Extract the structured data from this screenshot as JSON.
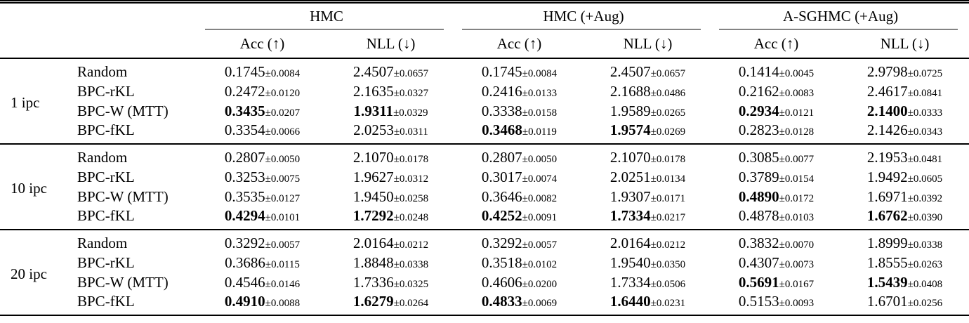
{
  "table": {
    "plus_minus": "±",
    "col_groups": [
      {
        "label": "HMC"
      },
      {
        "label": "HMC (+Aug)"
      },
      {
        "label": "A-SGHMC (+Aug)"
      }
    ],
    "sub_headers": [
      "Acc (↑)",
      "NLL (↓)"
    ],
    "row_groups": [
      {
        "label": "1 ipc",
        "rows": [
          {
            "method": "Random",
            "cells": [
              {
                "mean": "0.1745",
                "std": "0.0084",
                "bold": false
              },
              {
                "mean": "2.4507",
                "std": "0.0657",
                "bold": false
              },
              {
                "mean": "0.1745",
                "std": "0.0084",
                "bold": false
              },
              {
                "mean": "2.4507",
                "std": "0.0657",
                "bold": false
              },
              {
                "mean": "0.1414",
                "std": "0.0045",
                "bold": false
              },
              {
                "mean": "2.9798",
                "std": "0.0725",
                "bold": false
              }
            ]
          },
          {
            "method": "BPC-rKL",
            "cells": [
              {
                "mean": "0.2472",
                "std": "0.0120",
                "bold": false
              },
              {
                "mean": "2.1635",
                "std": "0.0327",
                "bold": false
              },
              {
                "mean": "0.2416",
                "std": "0.0133",
                "bold": false
              },
              {
                "mean": "2.1688",
                "std": "0.0486",
                "bold": false
              },
              {
                "mean": "0.2162",
                "std": "0.0083",
                "bold": false
              },
              {
                "mean": "2.4617",
                "std": "0.0841",
                "bold": false
              }
            ]
          },
          {
            "method": "BPC-W (MTT)",
            "cells": [
              {
                "mean": "0.3435",
                "std": "0.0207",
                "bold": true
              },
              {
                "mean": "1.9311",
                "std": "0.0329",
                "bold": true
              },
              {
                "mean": "0.3338",
                "std": "0.0158",
                "bold": false
              },
              {
                "mean": "1.9589",
                "std": "0.0265",
                "bold": false
              },
              {
                "mean": "0.2934",
                "std": "0.0121",
                "bold": true
              },
              {
                "mean": "2.1400",
                "std": "0.0333",
                "bold": true
              }
            ]
          },
          {
            "method": "BPC-fKL",
            "cells": [
              {
                "mean": "0.3354",
                "std": "0.0066",
                "bold": false
              },
              {
                "mean": "2.0253",
                "std": "0.0311",
                "bold": false
              },
              {
                "mean": "0.3468",
                "std": "0.0119",
                "bold": true
              },
              {
                "mean": "1.9574",
                "std": "0.0269",
                "bold": true
              },
              {
                "mean": "0.2823",
                "std": "0.0128",
                "bold": false
              },
              {
                "mean": "2.1426",
                "std": "0.0343",
                "bold": false
              }
            ]
          }
        ]
      },
      {
        "label": "10 ipc",
        "rows": [
          {
            "method": "Random",
            "cells": [
              {
                "mean": "0.2807",
                "std": "0.0050",
                "bold": false
              },
              {
                "mean": "2.1070",
                "std": "0.0178",
                "bold": false
              },
              {
                "mean": "0.2807",
                "std": "0.0050",
                "bold": false
              },
              {
                "mean": "2.1070",
                "std": "0.0178",
                "bold": false
              },
              {
                "mean": "0.3085",
                "std": "0.0077",
                "bold": false
              },
              {
                "mean": "2.1953",
                "std": "0.0481",
                "bold": false
              }
            ]
          },
          {
            "method": "BPC-rKL",
            "cells": [
              {
                "mean": "0.3253",
                "std": "0.0075",
                "bold": false
              },
              {
                "mean": "1.9627",
                "std": "0.0312",
                "bold": false
              },
              {
                "mean": "0.3017",
                "std": "0.0074",
                "bold": false
              },
              {
                "mean": "2.0251",
                "std": "0.0134",
                "bold": false
              },
              {
                "mean": "0.3789",
                "std": "0.0154",
                "bold": false
              },
              {
                "mean": "1.9492",
                "std": "0.0605",
                "bold": false
              }
            ]
          },
          {
            "method": "BPC-W (MTT)",
            "cells": [
              {
                "mean": "0.3535",
                "std": "0.0127",
                "bold": false
              },
              {
                "mean": "1.9450",
                "std": "0.0258",
                "bold": false
              },
              {
                "mean": "0.3646",
                "std": "0.0082",
                "bold": false
              },
              {
                "mean": "1.9307",
                "std": "0.0171",
                "bold": false
              },
              {
                "mean": "0.4890",
                "std": "0.0172",
                "bold": true
              },
              {
                "mean": "1.6971",
                "std": "0.0392",
                "bold": false
              }
            ]
          },
          {
            "method": "BPC-fKL",
            "cells": [
              {
                "mean": "0.4294",
                "std": "0.0101",
                "bold": true
              },
              {
                "mean": "1.7292",
                "std": "0.0248",
                "bold": true
              },
              {
                "mean": "0.4252",
                "std": "0.0091",
                "bold": true
              },
              {
                "mean": "1.7334",
                "std": "0.0217",
                "bold": true
              },
              {
                "mean": "0.4878",
                "std": "0.0103",
                "bold": false
              },
              {
                "mean": "1.6762",
                "std": "0.0390",
                "bold": true
              }
            ]
          }
        ]
      },
      {
        "label": "20 ipc",
        "rows": [
          {
            "method": "Random",
            "cells": [
              {
                "mean": "0.3292",
                "std": "0.0057",
                "bold": false
              },
              {
                "mean": "2.0164",
                "std": "0.0212",
                "bold": false
              },
              {
                "mean": "0.3292",
                "std": "0.0057",
                "bold": false
              },
              {
                "mean": "2.0164",
                "std": "0.0212",
                "bold": false
              },
              {
                "mean": "0.3832",
                "std": "0.0070",
                "bold": false
              },
              {
                "mean": "1.8999",
                "std": "0.0338",
                "bold": false
              }
            ]
          },
          {
            "method": "BPC-rKL",
            "cells": [
              {
                "mean": "0.3686",
                "std": "0.0115",
                "bold": false
              },
              {
                "mean": "1.8848",
                "std": "0.0338",
                "bold": false
              },
              {
                "mean": "0.3518",
                "std": "0.0102",
                "bold": false
              },
              {
                "mean": "1.9540",
                "std": "0.0350",
                "bold": false
              },
              {
                "mean": "0.4307",
                "std": "0.0073",
                "bold": false
              },
              {
                "mean": "1.8555",
                "std": "0.0263",
                "bold": false
              }
            ]
          },
          {
            "method": "BPC-W (MTT)",
            "cells": [
              {
                "mean": "0.4546",
                "std": "0.0146",
                "bold": false
              },
              {
                "mean": "1.7336",
                "std": "0.0325",
                "bold": false
              },
              {
                "mean": "0.4606",
                "std": "0.0200",
                "bold": false
              },
              {
                "mean": "1.7334",
                "std": "0.0506",
                "bold": false
              },
              {
                "mean": "0.5691",
                "std": "0.0167",
                "bold": true
              },
              {
                "mean": "1.5439",
                "std": "0.0408",
                "bold": true
              }
            ]
          },
          {
            "method": "BPC-fKL",
            "cells": [
              {
                "mean": "0.4910",
                "std": "0.0088",
                "bold": true
              },
              {
                "mean": "1.6279",
                "std": "0.0264",
                "bold": true
              },
              {
                "mean": "0.4833",
                "std": "0.0069",
                "bold": true
              },
              {
                "mean": "1.6440",
                "std": "0.0231",
                "bold": true
              },
              {
                "mean": "0.5153",
                "std": "0.0093",
                "bold": false
              },
              {
                "mean": "1.6701",
                "std": "0.0256",
                "bold": false
              }
            ]
          }
        ]
      }
    ]
  }
}
